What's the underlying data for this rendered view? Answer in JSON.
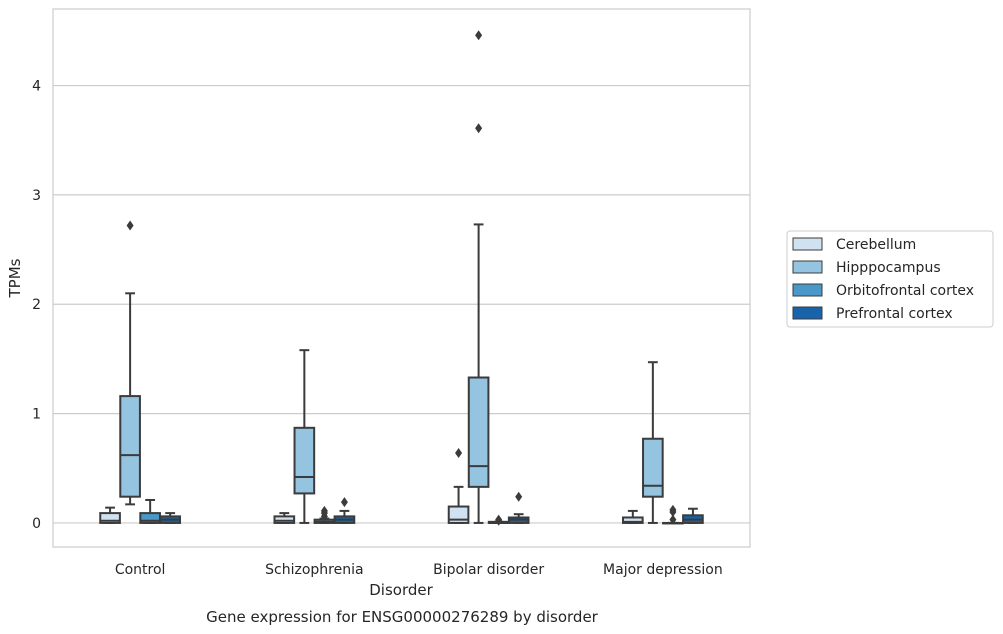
{
  "chart_data": {
    "type": "box",
    "xlabel": "Disorder",
    "ylabel": "TPMs",
    "caption": "Gene expression for ENSG00000276289 by disorder",
    "ylim": [
      -0.22,
      4.7
    ],
    "yticks": [
      0,
      1,
      2,
      3,
      4
    ],
    "grid": "horizontal",
    "legend_position": "right",
    "categories": [
      "Control",
      "Schizophrenia",
      "Bipolar disorder",
      "Major depression"
    ],
    "series": [
      {
        "name": "Cerebellum",
        "color": "#d0e1f2",
        "boxes": [
          {
            "whisker_low": 0.0,
            "q1": 0.0,
            "median": 0.02,
            "q3": 0.09,
            "whisker_high": 0.14,
            "outliers": []
          },
          {
            "whisker_low": 0.0,
            "q1": 0.0,
            "median": 0.02,
            "q3": 0.06,
            "whisker_high": 0.09,
            "outliers": []
          },
          {
            "whisker_low": 0.0,
            "q1": 0.0,
            "median": 0.03,
            "q3": 0.15,
            "whisker_high": 0.33,
            "outliers": [
              0.64
            ]
          },
          {
            "whisker_low": 0.0,
            "q1": 0.0,
            "median": 0.01,
            "q3": 0.05,
            "whisker_high": 0.11,
            "outliers": []
          }
        ]
      },
      {
        "name": "Hipppocampus",
        "color": "#94c4df",
        "boxes": [
          {
            "whisker_low": 0.17,
            "q1": 0.24,
            "median": 0.62,
            "q3": 1.16,
            "whisker_high": 2.1,
            "outliers": [
              2.72
            ]
          },
          {
            "whisker_low": 0.0,
            "q1": 0.27,
            "median": 0.42,
            "q3": 0.87,
            "whisker_high": 1.58,
            "outliers": []
          },
          {
            "whisker_low": 0.0,
            "q1": 0.33,
            "median": 0.52,
            "q3": 1.33,
            "whisker_high": 2.73,
            "outliers": [
              3.61,
              4.46
            ]
          },
          {
            "whisker_low": 0.0,
            "q1": 0.24,
            "median": 0.34,
            "q3": 0.77,
            "whisker_high": 1.47,
            "outliers": []
          }
        ]
      },
      {
        "name": "Orbitofrontal cortex",
        "color": "#4a98c9",
        "boxes": [
          {
            "whisker_low": 0.0,
            "q1": 0.0,
            "median": 0.02,
            "q3": 0.09,
            "whisker_high": 0.21,
            "outliers": []
          },
          {
            "whisker_low": 0.0,
            "q1": 0.0,
            "median": 0.01,
            "q3": 0.03,
            "whisker_high": 0.04,
            "outliers": [
              0.06,
              0.09,
              0.11
            ]
          },
          {
            "whisker_low": 0.0,
            "q1": 0.0,
            "median": 0.0,
            "q3": 0.01,
            "whisker_high": 0.01,
            "outliers": [
              0.02,
              0.03
            ]
          },
          {
            "whisker_low": 0.0,
            "q1": 0.0,
            "median": 0.0,
            "q3": 0.0,
            "whisker_high": 0.0,
            "outliers": [
              0.03,
              0.1,
              0.12
            ]
          }
        ]
      },
      {
        "name": "Prefrontal cortex",
        "color": "#1764ab",
        "boxes": [
          {
            "whisker_low": 0.0,
            "q1": 0.0,
            "median": 0.03,
            "q3": 0.06,
            "whisker_high": 0.09,
            "outliers": []
          },
          {
            "whisker_low": 0.0,
            "q1": 0.0,
            "median": 0.03,
            "q3": 0.06,
            "whisker_high": 0.11,
            "outliers": [
              0.19
            ]
          },
          {
            "whisker_low": 0.0,
            "q1": 0.0,
            "median": 0.03,
            "q3": 0.05,
            "whisker_high": 0.08,
            "outliers": [
              0.24
            ]
          },
          {
            "whisker_low": 0.0,
            "q1": 0.0,
            "median": 0.03,
            "q3": 0.07,
            "whisker_high": 0.13,
            "outliers": []
          }
        ]
      }
    ]
  }
}
